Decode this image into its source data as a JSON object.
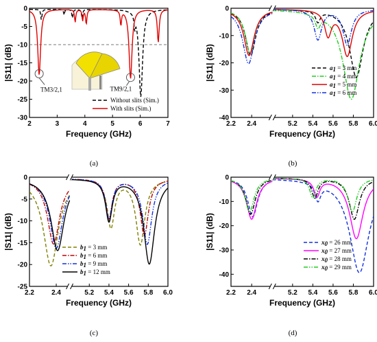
{
  "panels": [
    {
      "id": "a",
      "caption": "(a)",
      "type": "line",
      "xlabel": "Frequency (GHz)",
      "ylabel": "|S11| (dB)",
      "xlim": [
        2,
        7
      ],
      "ylim": [
        -30,
        0
      ],
      "xticks": [
        "2",
        "3",
        "4",
        "5",
        "6",
        "7"
      ],
      "yticks": [
        "0",
        "-5",
        "-10",
        "-15",
        "-20",
        "-25",
        "-30"
      ],
      "reference_line": -10,
      "annotations": [
        "TM3/2,1",
        "TM9/2,1"
      ],
      "series": [
        {
          "name": "Without slits (Sim.)",
          "color": "#000000",
          "dash": "dash",
          "dips": [
            [
              2.43,
              -3
            ],
            [
              3.25,
              -1.5
            ],
            [
              3.55,
              -2.5
            ],
            [
              3.9,
              -2.5
            ],
            [
              5.8,
              -3.5
            ],
            [
              6.02,
              -24
            ]
          ]
        },
        {
          "name": "With slits (Sim.)",
          "color": "#e00000",
          "dash": "solid",
          "dips": [
            [
              2.35,
              -18
            ],
            [
              3.65,
              -3.5
            ],
            [
              3.92,
              -3
            ],
            [
              4.05,
              -4
            ],
            [
              5.3,
              -4
            ],
            [
              5.65,
              -19
            ],
            [
              6.65,
              -9
            ]
          ]
        }
      ]
    },
    {
      "id": "b",
      "caption": "(b)",
      "type": "line",
      "xlabel": "Frequency (GHz)",
      "ylabel": "|S11| (dB)",
      "xlim_left": [
        2.2,
        2.6
      ],
      "xlim_right": [
        5.0,
        6.0
      ],
      "ylim": [
        -40,
        0
      ],
      "xticks": [
        "2.2",
        "2.4",
        "5.2",
        "5.4",
        "5.6",
        "5.8",
        "6.0"
      ],
      "yticks": [
        "0",
        "-10",
        "-20",
        "-30",
        "-40"
      ],
      "series": [
        {
          "name_prefix": "a",
          "name_sub": "1",
          "name_suffix": " = 3 mm",
          "color": "#000000",
          "dash": "dash",
          "dips": [
            [
              2.39,
              -17
            ],
            [
              5.45,
              -4
            ],
            [
              5.83,
              -25
            ]
          ]
        },
        {
          "name_prefix": "a",
          "name_sub": "1",
          "name_suffix": " = 4 mm",
          "color": "#22cc22",
          "dash": "dashdot",
          "dips": [
            [
              2.385,
              -16
            ],
            [
              5.45,
              -4.5
            ],
            [
              5.78,
              -33
            ]
          ]
        },
        {
          "name_prefix": "a",
          "name_sub": "1",
          "name_suffix": " = 5 mm",
          "color": "#e00000",
          "dash": "solid",
          "dips": [
            [
              2.375,
              -17
            ],
            [
              5.55,
              -9
            ],
            [
              5.74,
              -17
            ]
          ]
        },
        {
          "name_prefix": "a",
          "name_sub": "1",
          "name_suffix": " = 6 mm",
          "color": "#1030e0",
          "dash": "dashdotdot",
          "dips": [
            [
              2.37,
              -20
            ],
            [
              5.45,
              -11
            ],
            [
              5.74,
              -13
            ]
          ]
        }
      ]
    },
    {
      "id": "c",
      "caption": "(c)",
      "type": "line",
      "xlabel": "Frequency (GHz)",
      "ylabel": "|S11| (dB)",
      "xlim_left": [
        2.2,
        2.5
      ],
      "xlim_right": [
        5.0,
        6.0
      ],
      "ylim": [
        -25,
        0
      ],
      "xticks": [
        "2.2",
        "2.4",
        "5.2",
        "5.4",
        "5.6",
        "5.8",
        "6.0"
      ],
      "yticks": [
        "0",
        "-5",
        "-10",
        "-15",
        "-20",
        "-25"
      ],
      "series": [
        {
          "name_prefix": "b",
          "name_sub": "1",
          "name_suffix": " = 3 mm",
          "color": "#808000",
          "dash": "dash",
          "dips": [
            [
              2.36,
              -20
            ],
            [
              5.42,
              -11
            ],
            [
              5.72,
              -15
            ]
          ]
        },
        {
          "name_prefix": "b",
          "name_sub": "1",
          "name_suffix": " = 6 mm",
          "color": "#c00000",
          "dash": "dashdot",
          "dips": [
            [
              2.38,
              -15
            ],
            [
              5.4,
              -9
            ],
            [
              5.76,
              -13
            ]
          ]
        },
        {
          "name_prefix": "b",
          "name_sub": "1",
          "name_suffix": " = 9 mm",
          "color": "#1030e0",
          "dash": "dashdotdot",
          "dips": [
            [
              2.4,
              -16
            ],
            [
              5.4,
              -9
            ],
            [
              5.79,
              -15
            ]
          ]
        },
        {
          "name_prefix": "b",
          "name_sub": "1",
          "name_suffix": " = 12 mm",
          "color": "#000000",
          "dash": "solid",
          "dips": [
            [
              2.41,
              -16.5
            ],
            [
              5.4,
              -9.5
            ],
            [
              5.81,
              -19.5
            ]
          ]
        }
      ]
    },
    {
      "id": "d",
      "caption": "(d)",
      "type": "line",
      "xlabel": "Frequency (GHz)",
      "ylabel": "|S11| (dB)",
      "xlim_left": [
        2.2,
        2.6
      ],
      "xlim_right": [
        5.0,
        6.0
      ],
      "ylim": [
        -45,
        0
      ],
      "xticks": [
        "2.2",
        "2.4",
        "5.2",
        "5.4",
        "5.6",
        "5.8",
        "6.0"
      ],
      "yticks": [
        "0",
        "-10",
        "-20",
        "-30",
        "-40"
      ],
      "series": [
        {
          "name_prefix": "x",
          "name_sub": "0",
          "name_suffix": " = 26 mm",
          "color": "#1030e0",
          "dash": "dash",
          "dips": [
            [
              2.41,
              -16
            ],
            [
              5.45,
              -7
            ],
            [
              5.86,
              -39
            ]
          ]
        },
        {
          "name_prefix": "x",
          "name_sub": "0",
          "name_suffix": " = 27 mm",
          "color": "#ff00ff",
          "dash": "solid",
          "dips": [
            [
              2.4,
              -17
            ],
            [
              5.44,
              -7
            ],
            [
              5.83,
              -25
            ]
          ]
        },
        {
          "name_prefix": "x",
          "name_sub": "0",
          "name_suffix": " = 28 mm",
          "color": "#000000",
          "dash": "dashdot",
          "dips": [
            [
              2.39,
              -15
            ],
            [
              5.42,
              -8
            ],
            [
              5.81,
              -17
            ]
          ]
        },
        {
          "name_prefix": "x",
          "name_sub": "0",
          "name_suffix": " = 29 mm",
          "color": "#22cc22",
          "dash": "dashdotdot",
          "dips": [
            [
              2.38,
              -14
            ],
            [
              5.4,
              -8
            ],
            [
              5.79,
              -14
            ]
          ]
        }
      ]
    }
  ]
}
